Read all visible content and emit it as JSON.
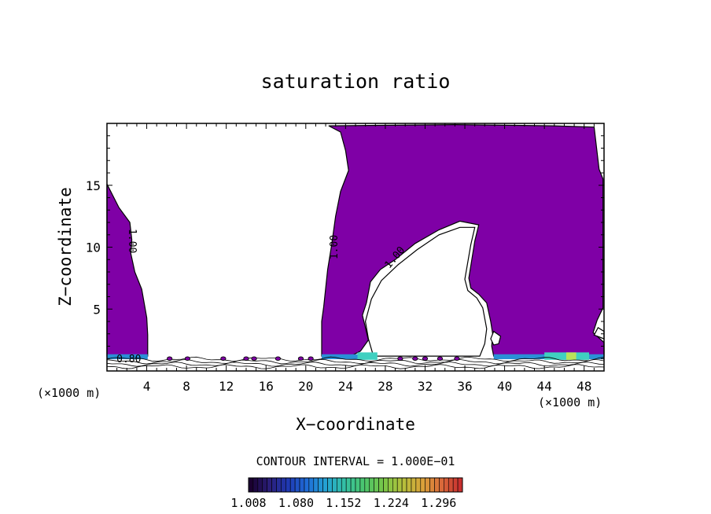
{
  "chart_data": {
    "type": "contour",
    "title": "saturation ratio",
    "xlabel": "X−coordinate",
    "ylabel": "Z−coordinate",
    "x_unit_left": "(×1000 m)",
    "x_unit_right": "(×1000 m)",
    "xlim": [
      0,
      50
    ],
    "ylim": [
      0,
      20
    ],
    "x_ticks": [
      "4",
      "8",
      "12",
      "16",
      "20",
      "24",
      "28",
      "32",
      "36",
      "40",
      "44",
      "48"
    ],
    "x_tick_values": [
      4,
      8,
      12,
      16,
      20,
      24,
      28,
      32,
      36,
      40,
      44,
      48
    ],
    "y_ticks": [
      "5",
      "10",
      "15"
    ],
    "y_tick_values": [
      5,
      10,
      15
    ],
    "contour_labels": [
      {
        "text": "1.00",
        "x": 2.2,
        "y": 10.5,
        "angle": 90
      },
      {
        "text": "1.00",
        "x": 23.2,
        "y": 10.0,
        "angle": -90
      },
      {
        "text": "1.00",
        "x": 29.2,
        "y": 9.0,
        "angle": -50
      },
      {
        "text": "0.80",
        "x": 2.2,
        "y": 0.7,
        "angle": 0
      }
    ],
    "regions": [
      {
        "name": "supersaturated-left",
        "color": "#7f00a6",
        "polygon": [
          [
            0,
            15.1
          ],
          [
            1.2,
            13.2
          ],
          [
            2.3,
            12.0
          ],
          [
            2.5,
            10.6
          ],
          [
            2.4,
            9.5
          ],
          [
            2.8,
            8.0
          ],
          [
            3.5,
            6.6
          ],
          [
            4.0,
            4.3
          ],
          [
            4.1,
            2.9
          ],
          [
            4.1,
            1.2
          ],
          [
            0,
            1.2
          ]
        ]
      },
      {
        "name": "supersaturated-central-right",
        "color": "#7f00a6",
        "polygon": [
          [
            22.3,
            19.8
          ],
          [
            23.5,
            19.3
          ],
          [
            24.0,
            17.8
          ],
          [
            24.3,
            16.2
          ],
          [
            23.5,
            14.5
          ],
          [
            23.0,
            12.5
          ],
          [
            22.6,
            10.2
          ],
          [
            22.2,
            8.2
          ],
          [
            21.8,
            5.2
          ],
          [
            21.6,
            4.0
          ],
          [
            21.6,
            1.2
          ],
          [
            24.5,
            1.2
          ],
          [
            25.5,
            1.6
          ],
          [
            26.3,
            2.5
          ],
          [
            26.0,
            3.5
          ],
          [
            25.7,
            4.5
          ],
          [
            26.1,
            5.5
          ],
          [
            26.5,
            7.2
          ],
          [
            27.5,
            8.2
          ],
          [
            29.0,
            9.0
          ],
          [
            31.0,
            10.3
          ],
          [
            33.4,
            11.4
          ],
          [
            35.5,
            12.1
          ],
          [
            37.4,
            11.8
          ],
          [
            37.0,
            10.5
          ],
          [
            36.4,
            7.5
          ],
          [
            36.6,
            6.7
          ],
          [
            37.4,
            6.2
          ],
          [
            38.2,
            5.5
          ],
          [
            38.6,
            4.0
          ],
          [
            38.8,
            3.0
          ],
          [
            38.7,
            2.0
          ],
          [
            38.9,
            1.2
          ],
          [
            50,
            1.2
          ],
          [
            50,
            2.3
          ],
          [
            48.9,
            3.1
          ],
          [
            49.3,
            4.1
          ],
          [
            49.9,
            5.1
          ],
          [
            49.9,
            15.5
          ],
          [
            49.5,
            16.3
          ],
          [
            49.0,
            19.7
          ],
          [
            45.0,
            19.8
          ],
          [
            35.0,
            19.9
          ]
        ]
      },
      {
        "name": "subsaturated-arch",
        "color": "#ffffff",
        "polygon": [
          [
            26.8,
            1.2
          ],
          [
            26.3,
            2.6
          ],
          [
            26.0,
            4.0
          ],
          [
            26.6,
            5.8
          ],
          [
            27.6,
            7.3
          ],
          [
            29.3,
            8.6
          ],
          [
            31.2,
            9.8
          ],
          [
            33.4,
            11.0
          ],
          [
            35.5,
            11.6
          ],
          [
            37.0,
            11.6
          ],
          [
            36.6,
            10.2
          ],
          [
            36.0,
            7.4
          ],
          [
            36.3,
            6.5
          ],
          [
            37.2,
            5.9
          ],
          [
            37.8,
            5.1
          ],
          [
            38.2,
            3.4
          ],
          [
            38.0,
            2.2
          ],
          [
            37.5,
            1.2
          ]
        ]
      },
      {
        "name": "subsaturated-notch",
        "color": "#ffffff",
        "polygon": [
          [
            38.6,
            2.6
          ],
          [
            38.9,
            3.2
          ],
          [
            39.6,
            2.8
          ],
          [
            39.4,
            2.2
          ],
          [
            38.9,
            2.1
          ]
        ]
      },
      {
        "name": "subsaturated-right-notch",
        "color": "#ffffff",
        "polygon": [
          [
            49.0,
            2.9
          ],
          [
            49.4,
            3.5
          ],
          [
            50,
            3.2
          ],
          [
            50,
            2.6
          ]
        ]
      }
    ],
    "colorbar": {
      "title": "CONTOUR INTERVAL = 1.000E−01",
      "tick_labels": [
        "1.008",
        "1.080",
        "1.152",
        "1.224",
        "1.296"
      ],
      "tick_values": [
        1.008,
        1.08,
        1.152,
        1.224,
        1.296
      ],
      "range": [
        1.008,
        1.332
      ],
      "colors": [
        "#1a0030",
        "#2a1f7a",
        "#1f3ab5",
        "#1f6fd8",
        "#24a6d2",
        "#35c2a0",
        "#4cc56a",
        "#7ac646",
        "#b5c03c",
        "#d9a33a",
        "#d96a3a",
        "#c8302f"
      ]
    }
  }
}
